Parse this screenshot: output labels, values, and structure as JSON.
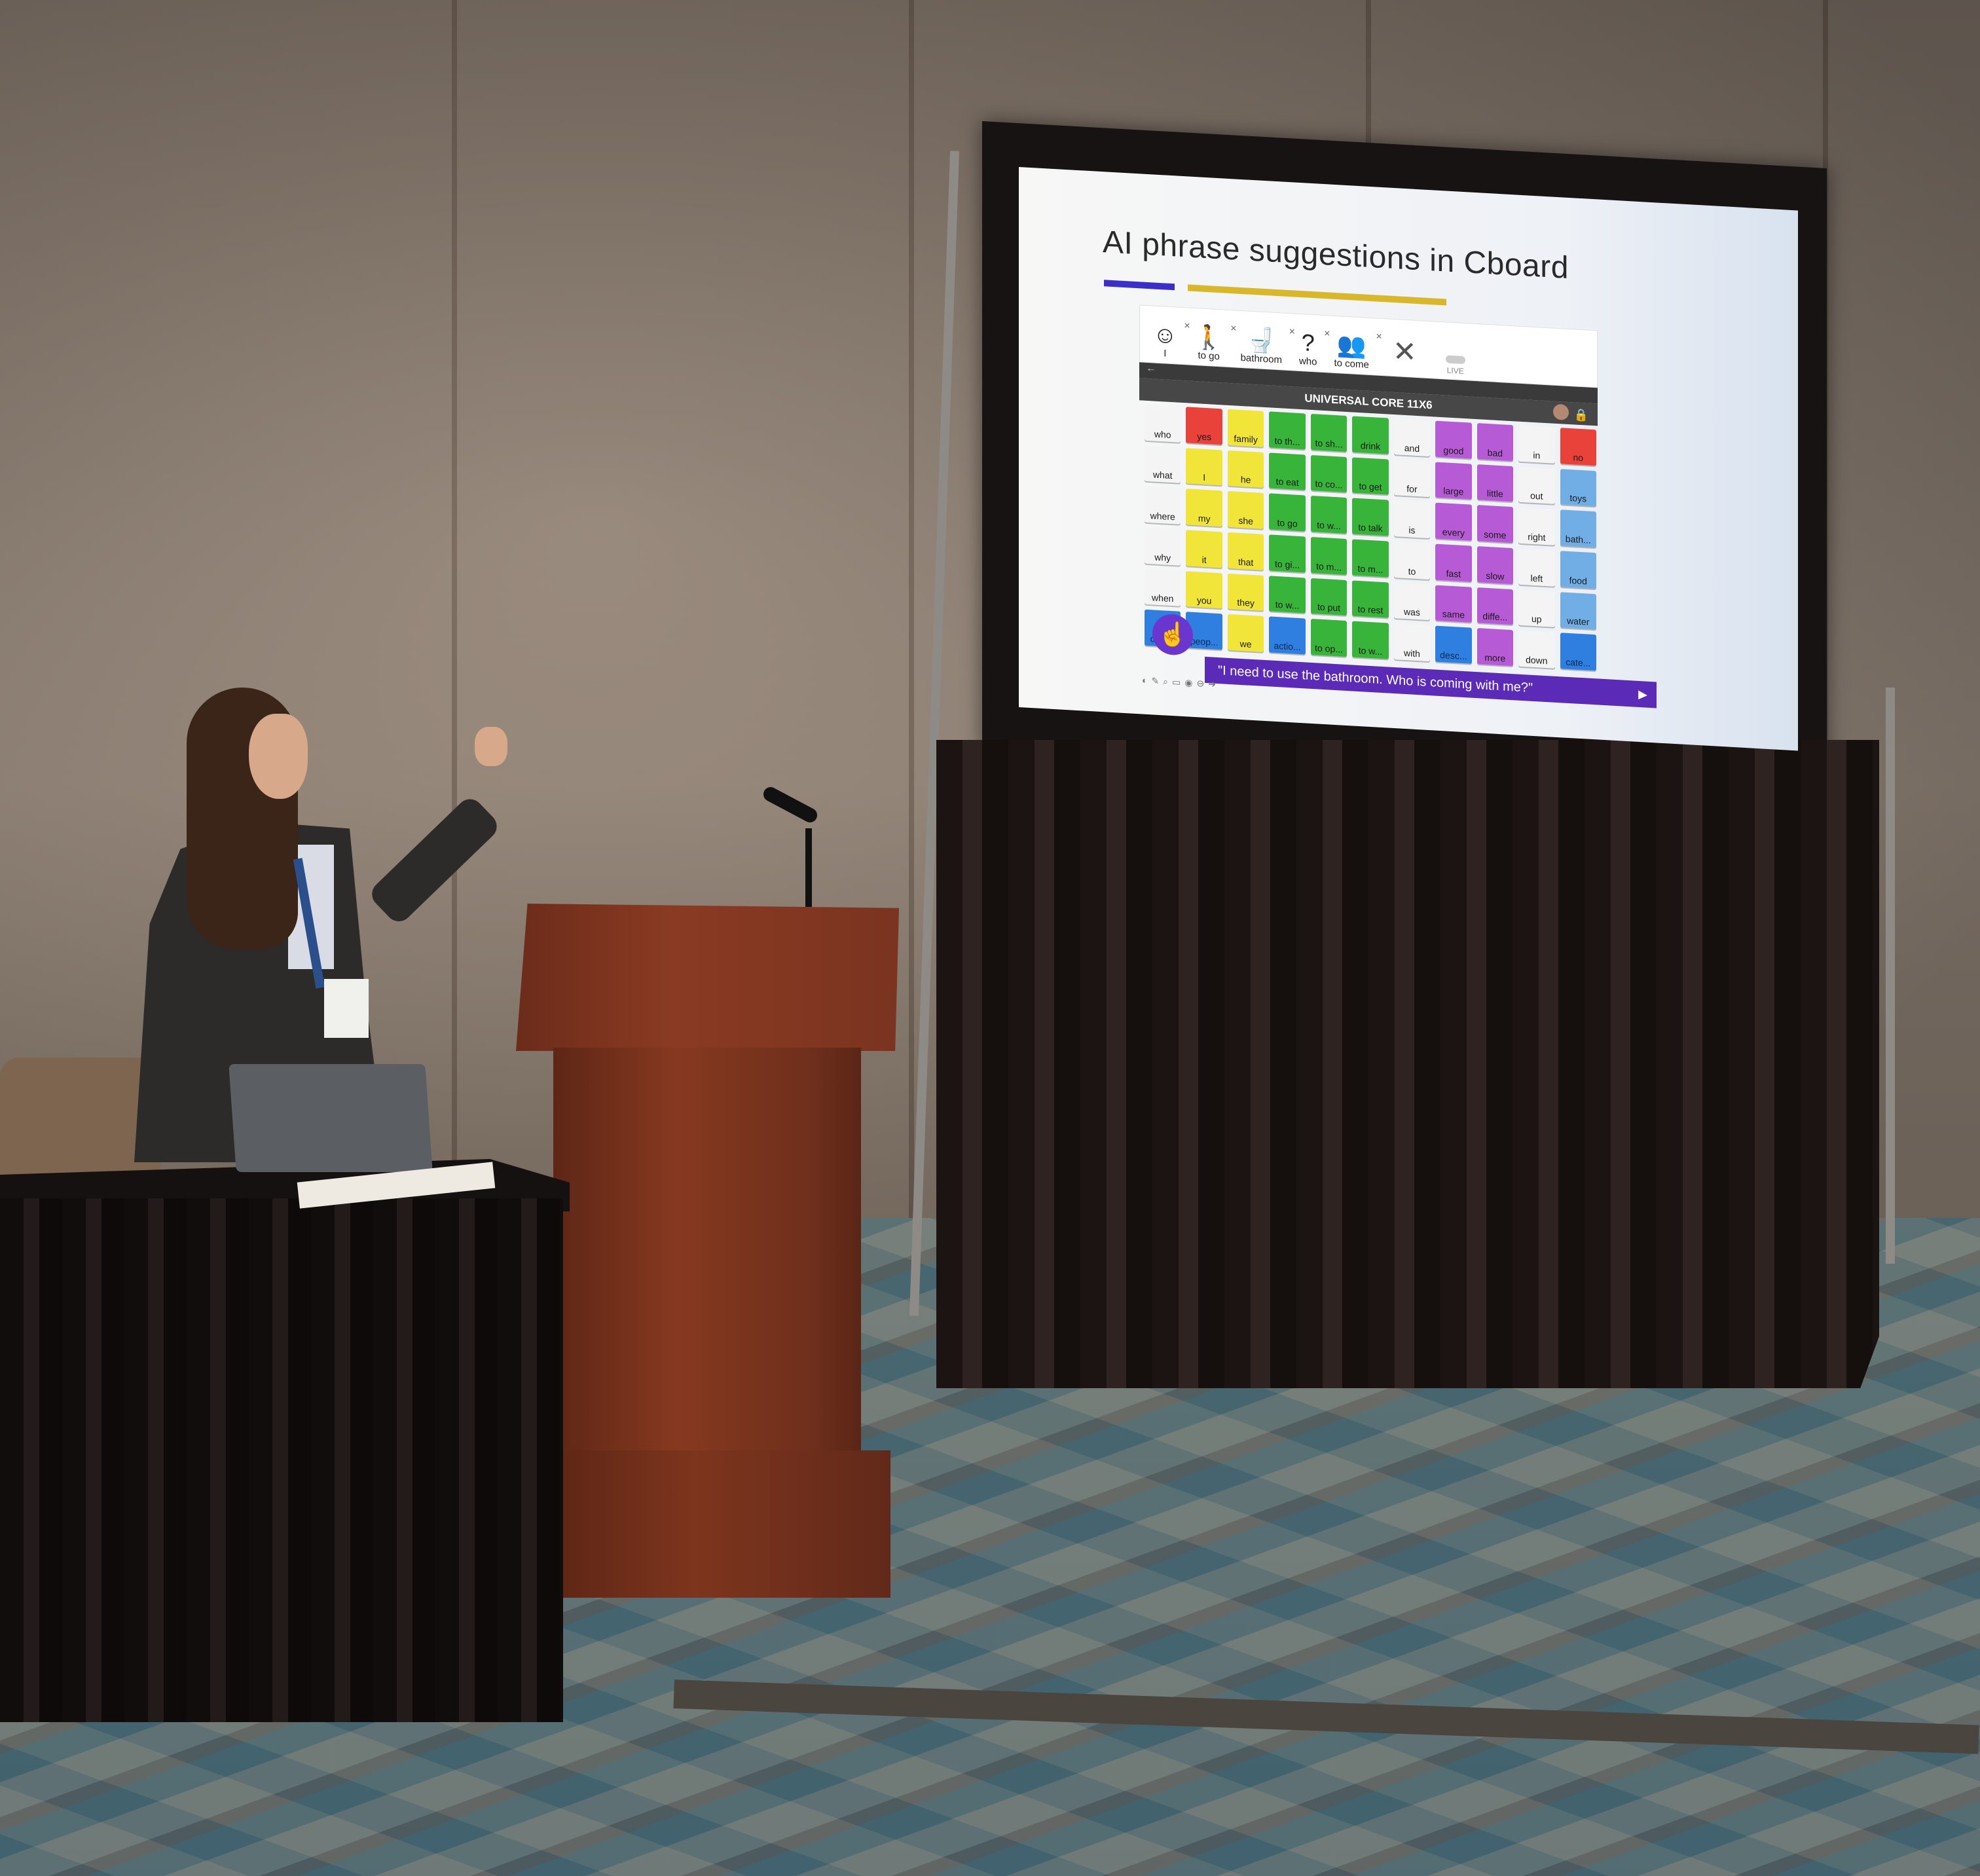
{
  "slide": {
    "title": "AI phrase suggestions in Cboard",
    "accent_colors": {
      "purple_bar": "#3b2fc9",
      "yellow_bar": "#d8b72a"
    }
  },
  "app": {
    "sentence_symbols": [
      {
        "label": "I",
        "icon": "person-icon"
      },
      {
        "label": "to go",
        "icon": "walking-person-icon"
      },
      {
        "label": "bathroom",
        "icon": "toilet-icon"
      },
      {
        "label": "who",
        "icon": "question-person-icon"
      },
      {
        "label": "to come",
        "icon": "two-people-icon"
      }
    ],
    "live_label": "LIVE",
    "board_title": "UNIVERSAL CORE 11X6",
    "grid_rows": [
      [
        {
          "label": "who",
          "color": "white"
        },
        {
          "label": "yes",
          "color": "red"
        },
        {
          "label": "family",
          "color": "yellow"
        },
        {
          "label": "to th...",
          "color": "green"
        },
        {
          "label": "to sh...",
          "color": "green"
        },
        {
          "label": "drink",
          "color": "green"
        },
        {
          "label": "and",
          "color": "white"
        },
        {
          "label": "good",
          "color": "purple"
        },
        {
          "label": "bad",
          "color": "purple"
        },
        {
          "label": "in",
          "color": "white"
        },
        {
          "label": "no",
          "color": "red"
        }
      ],
      [
        {
          "label": "what",
          "color": "white"
        },
        {
          "label": "I",
          "color": "yellow"
        },
        {
          "label": "he",
          "color": "yellow"
        },
        {
          "label": "to eat",
          "color": "green"
        },
        {
          "label": "to co...",
          "color": "green"
        },
        {
          "label": "to get",
          "color": "green"
        },
        {
          "label": "for",
          "color": "white"
        },
        {
          "label": "large",
          "color": "purple"
        },
        {
          "label": "little",
          "color": "purple"
        },
        {
          "label": "out",
          "color": "white"
        },
        {
          "label": "toys",
          "color": "blue"
        }
      ],
      [
        {
          "label": "where",
          "color": "white"
        },
        {
          "label": "my",
          "color": "yellow"
        },
        {
          "label": "she",
          "color": "yellow"
        },
        {
          "label": "to go",
          "color": "green"
        },
        {
          "label": "to w...",
          "color": "green"
        },
        {
          "label": "to talk",
          "color": "green"
        },
        {
          "label": "is",
          "color": "white"
        },
        {
          "label": "every",
          "color": "purple"
        },
        {
          "label": "some",
          "color": "purple"
        },
        {
          "label": "right",
          "color": "white"
        },
        {
          "label": "bath...",
          "color": "blue"
        }
      ],
      [
        {
          "label": "why",
          "color": "white"
        },
        {
          "label": "it",
          "color": "yellow"
        },
        {
          "label": "that",
          "color": "yellow"
        },
        {
          "label": "to gi...",
          "color": "green"
        },
        {
          "label": "to m...",
          "color": "green"
        },
        {
          "label": "to m...",
          "color": "green"
        },
        {
          "label": "to",
          "color": "white"
        },
        {
          "label": "fast",
          "color": "purple"
        },
        {
          "label": "slow",
          "color": "purple"
        },
        {
          "label": "left",
          "color": "white"
        },
        {
          "label": "food",
          "color": "blue"
        }
      ],
      [
        {
          "label": "when",
          "color": "white"
        },
        {
          "label": "you",
          "color": "yellow"
        },
        {
          "label": "they",
          "color": "yellow"
        },
        {
          "label": "to w...",
          "color": "green"
        },
        {
          "label": "to put",
          "color": "green"
        },
        {
          "label": "to rest",
          "color": "green"
        },
        {
          "label": "was",
          "color": "white"
        },
        {
          "label": "same",
          "color": "purple"
        },
        {
          "label": "diffe...",
          "color": "purple"
        },
        {
          "label": "up",
          "color": "white"
        },
        {
          "label": "water",
          "color": "blue"
        }
      ],
      [
        {
          "label": "com...",
          "color": "folder"
        },
        {
          "label": "peop...",
          "color": "folder"
        },
        {
          "label": "we",
          "color": "yellow"
        },
        {
          "label": "actio...",
          "color": "folder"
        },
        {
          "label": "to op...",
          "color": "green"
        },
        {
          "label": "to w...",
          "color": "green"
        },
        {
          "label": "with",
          "color": "white"
        },
        {
          "label": "desc...",
          "color": "folder"
        },
        {
          "label": "more",
          "color": "purple"
        },
        {
          "label": "down",
          "color": "white"
        },
        {
          "label": "cate...",
          "color": "folder"
        }
      ]
    ],
    "output_phrase": "\"I need to use the bathroom. Who is coming with me?\"",
    "colors": {
      "red": "#e8423a",
      "yellow": "#f2e53a",
      "green": "#38b43a",
      "purple": "#b65ad6",
      "blue": "#72aee6",
      "folder": "#2f7fe0",
      "white": "#f4f4f4",
      "output_bar": "#5b2bb8",
      "logo": "#6b35d0"
    }
  }
}
